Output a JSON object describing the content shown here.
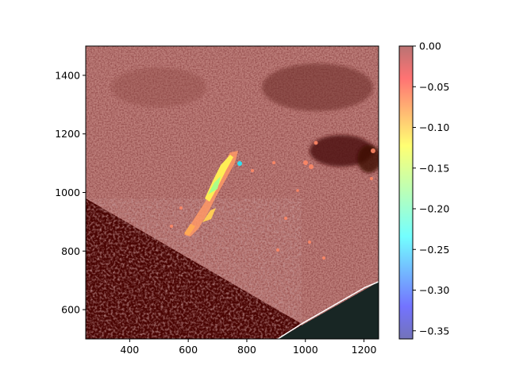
{
  "chart_data": {
    "type": "heatmap",
    "title": "",
    "xlabel": "",
    "ylabel": "",
    "xlim": [
      250,
      1250
    ],
    "ylim": [
      500,
      1500
    ],
    "x_ticks": [
      400,
      600,
      800,
      1000,
      1200
    ],
    "y_ticks": [
      600,
      800,
      1000,
      1200,
      1400
    ],
    "colorbar": {
      "colormap": "jet",
      "alpha": 0.5,
      "range": [
        -0.36,
        0.0
      ],
      "ticks": [
        0.0,
        -0.05,
        -0.1,
        -0.15,
        -0.2,
        -0.25,
        -0.3,
        -0.35
      ],
      "tick_labels": [
        "0.00",
        "−0.05",
        "−0.10",
        "−0.15",
        "−0.20",
        "−0.25",
        "−0.30",
        "−0.35"
      ]
    },
    "background": "dark reddish-brown textured image with translucent jet overlay; nodata wedge in lower-right",
    "features": [
      {
        "description": "elongated anomaly",
        "x_range": [
          600,
          800
        ],
        "y_range": [
          850,
          1130
        ],
        "min_value": -0.28
      },
      {
        "description": "scattered small anomalies",
        "x_range": [
          950,
          1250
        ],
        "y_range": [
          1050,
          1250
        ],
        "min_value": -0.05
      }
    ],
    "grid": false,
    "legend": "none"
  }
}
